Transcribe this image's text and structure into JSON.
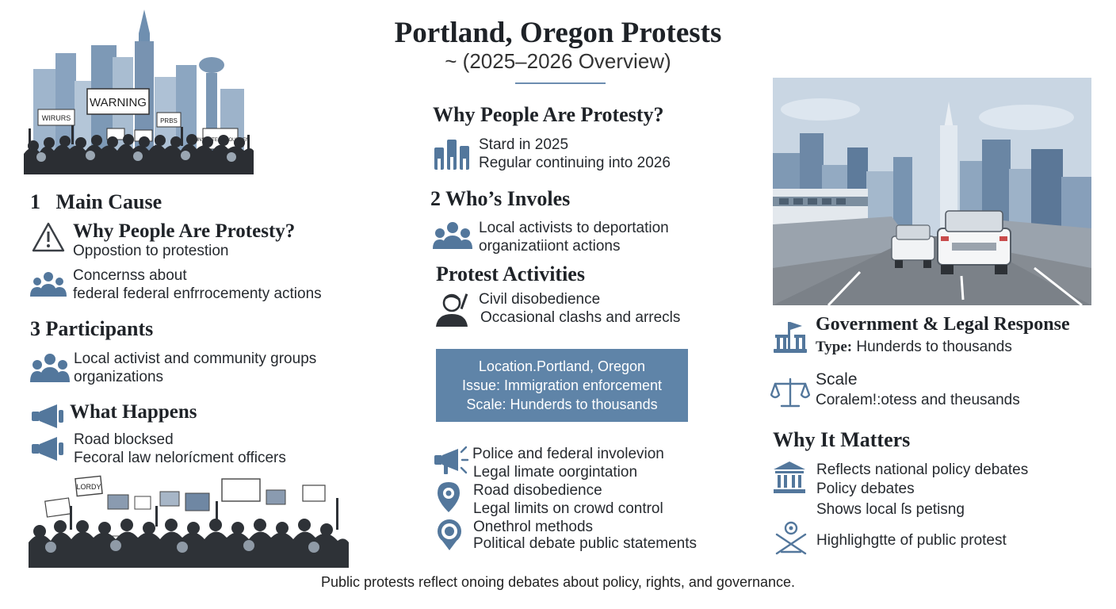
{
  "header": {
    "title": "Portland, Oregon Protests",
    "subtitle": "~ (2025–2026 Overview)"
  },
  "illustrations": {
    "sign_warning": "WARNING",
    "sign_1": "WIRURS",
    "sign_2": "PRBS",
    "sign_3": "CUNSUDTE ENFOUDUEN",
    "sign_bottom": "LORDY"
  },
  "left": {
    "main_cause": {
      "number": "1",
      "title": "Main Cause"
    },
    "why": {
      "title": "Why People Are Protesty?",
      "line1": "Oppostion to protestion"
    },
    "concerns": {
      "line1": "Concernss about",
      "line2": "federal federal enfrrocementy actions"
    },
    "participants": {
      "number": "3",
      "title": "Participants",
      "line1": "Local activist and community groups",
      "line2": "organizations"
    },
    "what": {
      "title": "What Happens",
      "line1": "Road blocksed",
      "line2": "Fecoral law nelorícment officers"
    }
  },
  "center": {
    "why": {
      "title": "Why People Are Protesty?",
      "line1": "Stard in 2025",
      "line2": "Regular continuing into 2026"
    },
    "who": {
      "number": "2",
      "title": "Who’s Involes",
      "line1": "Local activists to deportation",
      "line2": "organizatiiont actions"
    },
    "activities": {
      "title": "Protest Activities",
      "line1": "Civil disobedience",
      "line2": "Occasional clashs and arrecls"
    },
    "info_box": {
      "line1": "Location.Portland, Oregon",
      "line2": "Issue: Immigration enforcement",
      "line3": "Scale: Hunderds to thousands"
    },
    "police": {
      "line1": "Police and federal involevion",
      "line2": "Legal limate oorgintation",
      "line3": "Road disobedience",
      "line4": "Legal limits on crowd control",
      "line5": "Onethrol methods",
      "line6": "Political debate public statements"
    }
  },
  "right": {
    "gov": {
      "title": "Government & Legal Response",
      "type_label": "Type:",
      "type_value": " Hunderds to thousands"
    },
    "scale": {
      "title": "Scale",
      "line1": "Coralem!:otess and theusands"
    },
    "matters": {
      "title": "Why It Matters",
      "line1": "Reflects national policy debates",
      "line2": "Policy debates",
      "line3": "Shows local ſs petisng",
      "line4": "Highlighgtte of public protest"
    }
  },
  "footer": "Public protests reflect onoing debates about policy, rights, and governance.",
  "colors": {
    "accent": "#5f84a8",
    "icon": "#53779c",
    "text": "#1f2328"
  }
}
